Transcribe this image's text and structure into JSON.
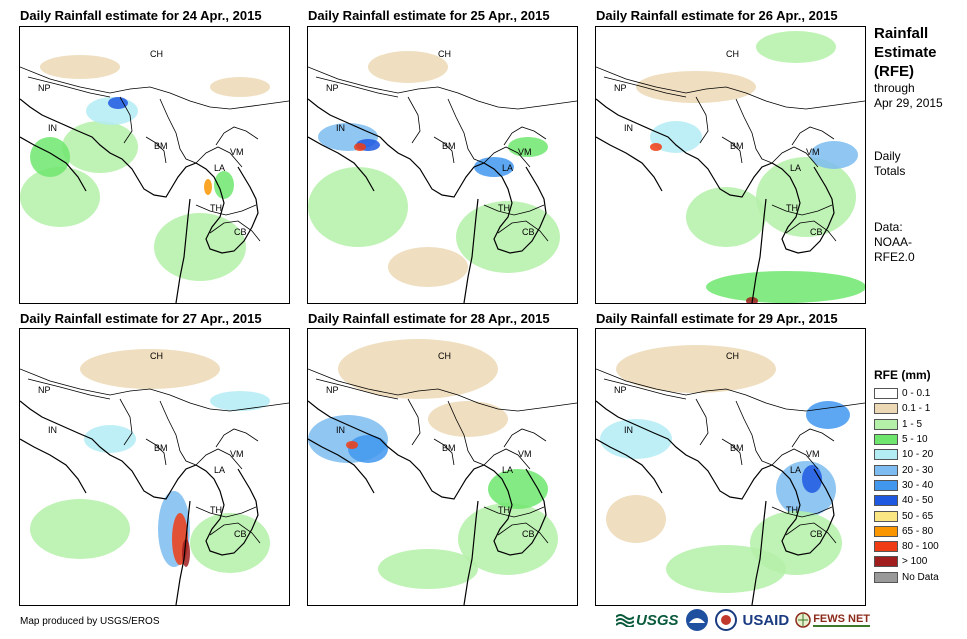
{
  "panels": [
    {
      "title": "Daily Rainfall estimate for 24 Apr., 2015"
    },
    {
      "title": "Daily Rainfall estimate for 25 Apr., 2015"
    },
    {
      "title": "Daily Rainfall estimate for 26 Apr., 2015"
    },
    {
      "title": "Daily Rainfall estimate for 27 Apr., 2015"
    },
    {
      "title": "Daily Rainfall estimate for 28 Apr., 2015"
    },
    {
      "title": "Daily Rainfall estimate for 29 Apr., 2015"
    }
  ],
  "country_labels": [
    "CH",
    "NP",
    "IN",
    "BM",
    "LA",
    "VM",
    "TH",
    "CB"
  ],
  "side": {
    "title_lines": [
      "Rainfall",
      "Estimate",
      "(RFE)"
    ],
    "through_label": "through",
    "through_date": "Apr 29, 2015",
    "daily_lines": [
      "Daily",
      "Totals"
    ],
    "data_lines": [
      "Data:",
      "NOAA-",
      "RFE2.0"
    ]
  },
  "legend": {
    "title": "RFE (mm)",
    "items": [
      {
        "label": "0 - 0.1",
        "color": "#ffffff"
      },
      {
        "label": "0.1 - 1",
        "color": "#ecd8b4"
      },
      {
        "label": "1 - 5",
        "color": "#b4f0a8"
      },
      {
        "label": "5 - 10",
        "color": "#6ee66e"
      },
      {
        "label": "10 - 20",
        "color": "#b4ecf4"
      },
      {
        "label": "20 - 30",
        "color": "#7cbcf0"
      },
      {
        "label": "30 - 40",
        "color": "#4196ee"
      },
      {
        "label": "40 - 50",
        "color": "#1e58e0"
      },
      {
        "label": "50 - 65",
        "color": "#fae682"
      },
      {
        "label": "65 - 80",
        "color": "#fa9600"
      },
      {
        "label": "80 - 100",
        "color": "#f03c14"
      },
      {
        "label": "> 100",
        "color": "#a01e1e"
      },
      {
        "label": "No Data",
        "color": "#999999"
      }
    ]
  },
  "credit": "Map produced by USGS/EROS",
  "logos": {
    "usgs": "USGS",
    "usaid": "USAID",
    "fews": "FEWS NET"
  }
}
